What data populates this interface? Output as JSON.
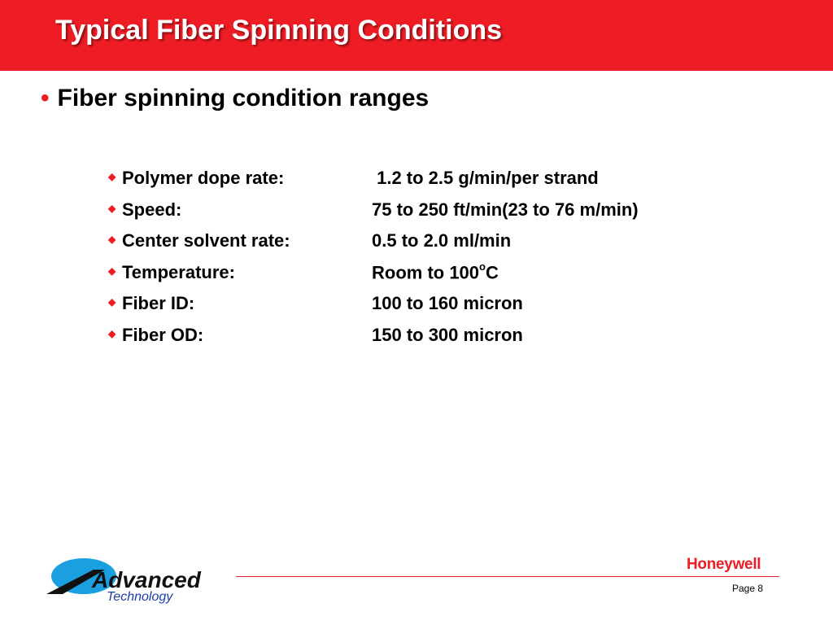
{
  "slide": {
    "title": "Typical Fiber Spinning Conditions",
    "main_bullet": "Fiber spinning condition ranges",
    "items": [
      {
        "label": "Polymer dope rate:",
        "value": " 1.2 to 2.5 g/min/per strand"
      },
      {
        "label": "Speed:",
        "value": "75 to 250 ft/min(23 to 76 m/min)"
      },
      {
        "label": "Center solvent rate:",
        "value": "0.5 to 2.0 ml/min"
      },
      {
        "label": "Temperature:",
        "value_main": "Room to 100",
        "value_sup": "o",
        "value_unit": "C"
      },
      {
        "label": "Fiber ID:",
        "value": "100 to 160 micron"
      },
      {
        "label": "Fiber OD:",
        "value": "150 to 300 micron"
      }
    ]
  },
  "footer": {
    "logo_line1": "Advanced",
    "logo_line2": "Technology",
    "brand": "Honeywell",
    "page": "Page 8"
  },
  "colors": {
    "accent_red": "#ee1c24",
    "logo_blue": "#1aa0e0",
    "logo_dark_blue": "#1a3ea6"
  },
  "icons": {
    "main_bullet": "bullet-dot-icon",
    "sub_bullet": "diamond-bullet-icon"
  }
}
